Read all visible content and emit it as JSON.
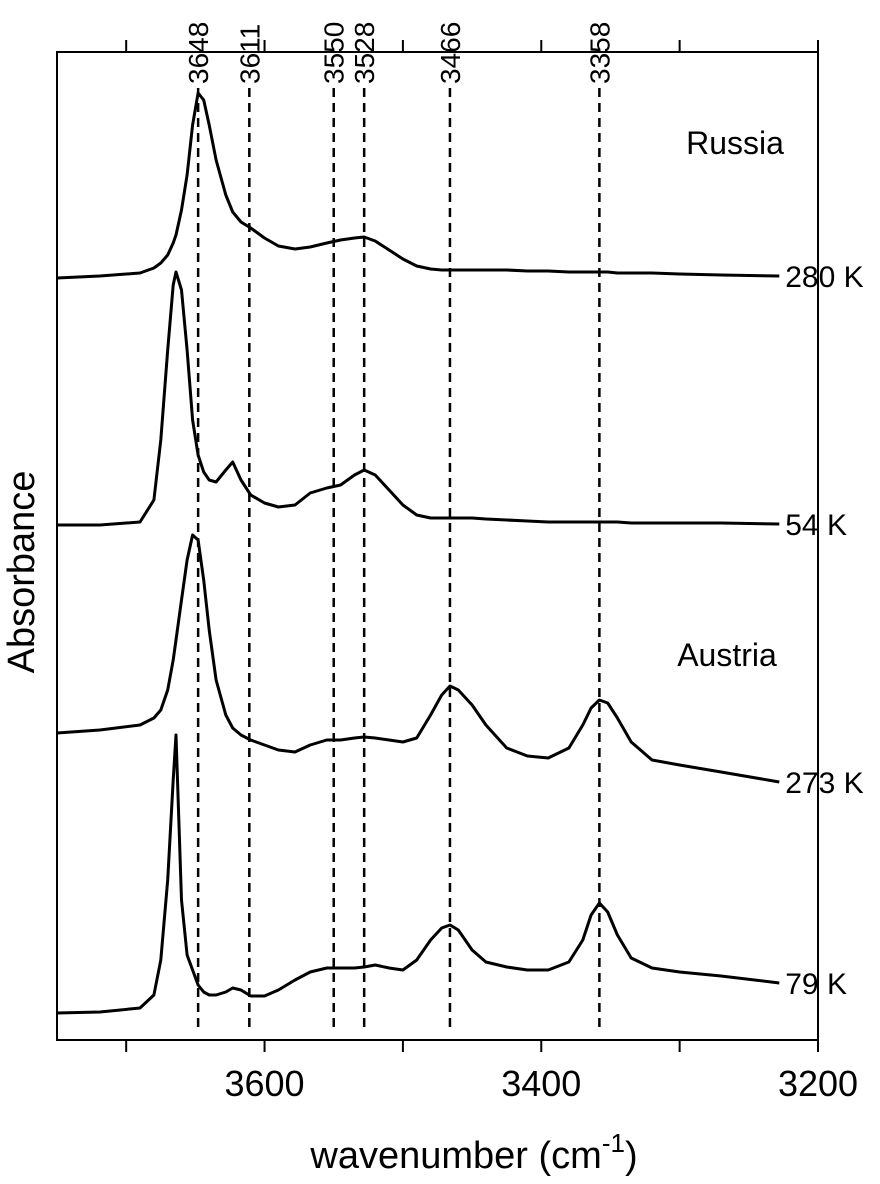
{
  "chart_data": {
    "type": "line",
    "xlabel": {
      "text": "wavenumber (cm",
      "superscript": "-1",
      "suffix": ")"
    },
    "ylabel": "Absorbance",
    "annotations": [
      "Russia",
      "Austria"
    ],
    "xlim": [
      3750,
      3200
    ],
    "ylim": [
      0,
      988
    ],
    "xticks": [
      3600,
      3400,
      3200
    ],
    "xminor_ticks": [
      3700,
      3500,
      3300
    ],
    "reference_lines": [
      3648,
      3611,
      3550,
      3528,
      3466,
      3358
    ],
    "x": [
      3750,
      3719,
      3690,
      3680,
      3675,
      3670,
      3666,
      3664,
      3660,
      3656,
      3652,
      3648,
      3644,
      3640,
      3635,
      3628,
      3623,
      3617,
      3610,
      3600,
      3590,
      3578,
      3567,
      3555,
      3545,
      3535,
      3528,
      3520,
      3510,
      3500,
      3490,
      3480,
      3472,
      3466,
      3460,
      3450,
      3440,
      3425,
      3410,
      3395,
      3380,
      3370,
      3364,
      3358,
      3352,
      3345,
      3335,
      3320,
      3300,
      3270,
      3228
    ],
    "series": [
      {
        "name": "280 K",
        "color": "#000000",
        "values": [
          762,
          764,
          767,
          772,
          777,
          785,
          797,
          805,
          830,
          865,
          915,
          947,
          940,
          915,
          880,
          845,
          828,
          818,
          812,
          802,
          794,
          791,
          793,
          797,
          800,
          802,
          803,
          799,
          790,
          781,
          774,
          771,
          770,
          770,
          770,
          770,
          770,
          770,
          769,
          769,
          768,
          768,
          768,
          768,
          768,
          767,
          767,
          767,
          766,
          765,
          764
        ]
      },
      {
        "name": "54 K",
        "color": "#000000",
        "values": [
          515,
          515,
          518,
          540,
          600,
          690,
          755,
          768,
          750,
          690,
          620,
          585,
          568,
          560,
          558,
          570,
          578,
          560,
          545,
          537,
          533,
          535,
          547,
          552,
          555,
          565,
          570,
          565,
          550,
          535,
          525,
          522,
          522,
          522,
          522,
          522,
          521,
          520,
          519,
          518,
          518,
          518,
          518,
          518,
          518,
          518,
          517,
          517,
          517,
          517,
          516
        ]
      },
      {
        "name": "273 K",
        "color": "#000000",
        "values": [
          307,
          310,
          315,
          322,
          330,
          350,
          380,
          400,
          440,
          480,
          505,
          500,
          460,
          410,
          360,
          325,
          312,
          305,
          300,
          295,
          290,
          288,
          295,
          300,
          300,
          302,
          303,
          302,
          300,
          298,
          302,
          325,
          345,
          354,
          350,
          335,
          315,
          292,
          284,
          282,
          292,
          315,
          332,
          340,
          337,
          322,
          298,
          280,
          275,
          268,
          258
        ]
      },
      {
        "name": "79 K",
        "color": "#000000",
        "values": [
          27,
          28,
          32,
          45,
          80,
          160,
          260,
          305,
          140,
          85,
          70,
          55,
          48,
          45,
          45,
          48,
          52,
          50,
          44,
          44,
          50,
          60,
          68,
          72,
          72,
          72,
          73,
          75,
          72,
          70,
          80,
          100,
          112,
          115,
          110,
          90,
          78,
          73,
          70,
          70,
          78,
          100,
          125,
          137,
          128,
          105,
          82,
          72,
          68,
          64,
          57
        ]
      }
    ]
  }
}
